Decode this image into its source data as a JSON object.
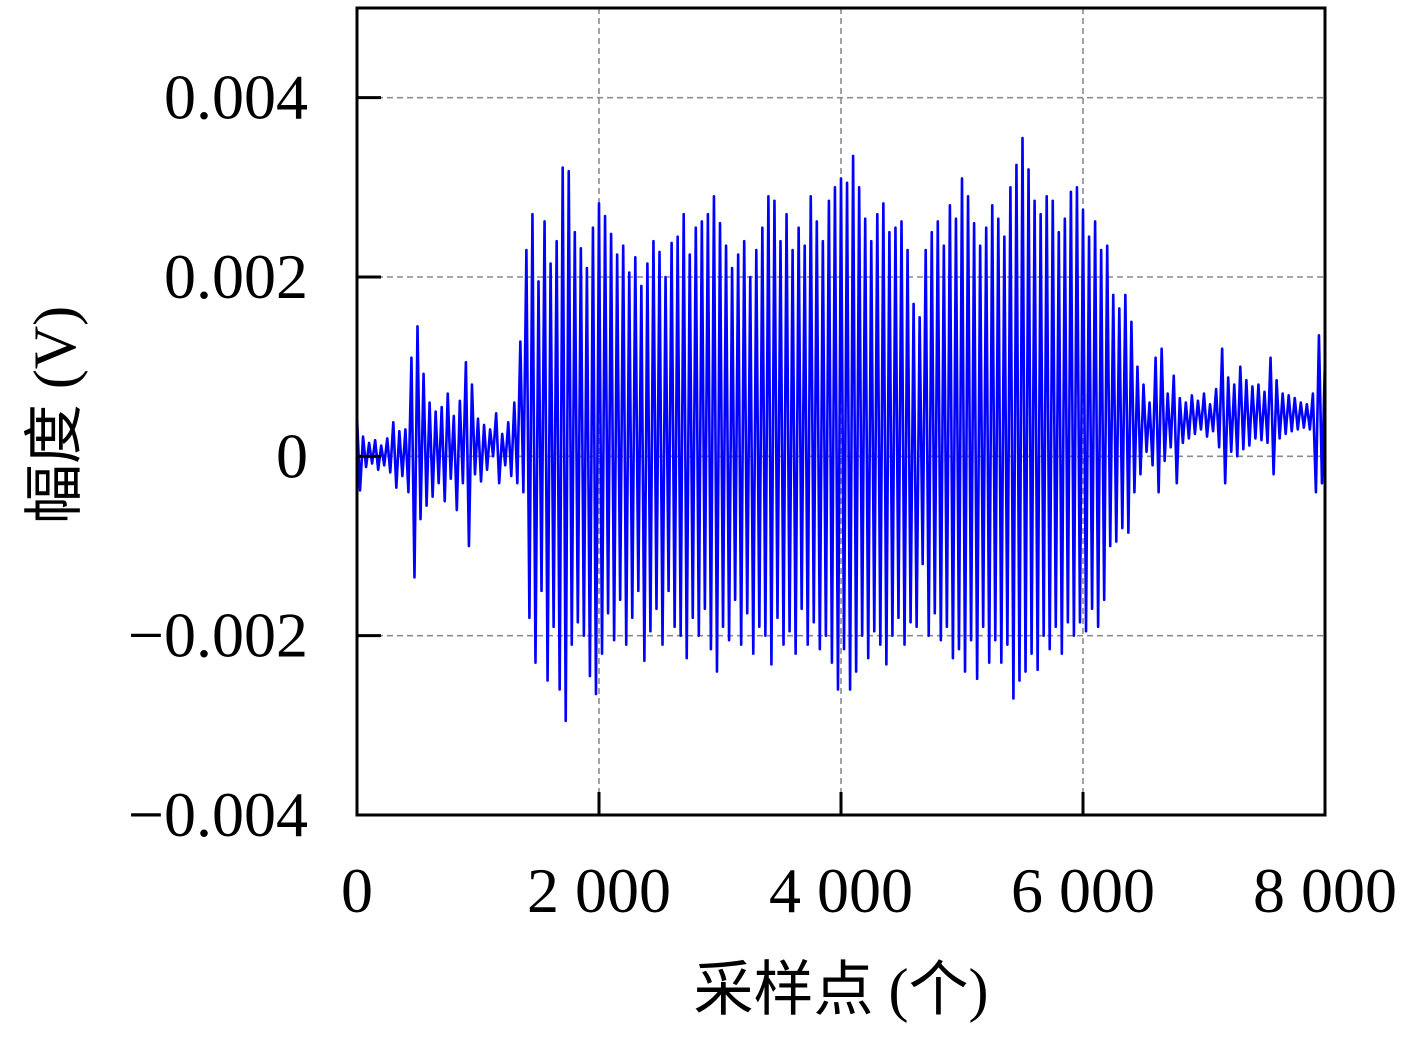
{
  "chart_data": {
    "type": "line",
    "xlabel": "采样点 (个)",
    "ylabel": "幅度 (V)",
    "xlim": [
      0,
      8000
    ],
    "ylim": [
      -0.004,
      0.005
    ],
    "xticks": [
      0,
      2000,
      4000,
      6000,
      8000
    ],
    "xtick_labels": [
      "0",
      "2 000",
      "4 000",
      "6 000",
      "8 000"
    ],
    "yticks": [
      -0.004,
      -0.002,
      0,
      0.002,
      0.004
    ],
    "ytick_labels": [
      "−0.004",
      "−0.002",
      "0",
      "0.002",
      "0.004"
    ],
    "grid": true,
    "grid_style": "dashed",
    "legend": "none",
    "series": [
      {
        "color": "#0000ff",
        "x": [
          0,
          25,
          50,
          75,
          100,
          125,
          150,
          175,
          200,
          225,
          250,
          275,
          300,
          325,
          350,
          375,
          400,
          425,
          450,
          475,
          500,
          525,
          550,
          575,
          600,
          625,
          650,
          675,
          700,
          725,
          750,
          775,
          800,
          825,
          850,
          875,
          900,
          925,
          950,
          975,
          1000,
          1025,
          1050,
          1075,
          1100,
          1125,
          1150,
          1175,
          1200,
          1225,
          1250,
          1275,
          1300,
          1325,
          1350,
          1375,
          1400,
          1425,
          1450,
          1475,
          1500,
          1525,
          1550,
          1575,
          1600,
          1625,
          1650,
          1675,
          1700,
          1725,
          1750,
          1775,
          1800,
          1825,
          1850,
          1875,
          1900,
          1925,
          1950,
          1975,
          2000,
          2025,
          2050,
          2075,
          2100,
          2125,
          2150,
          2175,
          2200,
          2225,
          2250,
          2275,
          2300,
          2325,
          2350,
          2375,
          2400,
          2425,
          2450,
          2475,
          2500,
          2525,
          2550,
          2575,
          2600,
          2625,
          2650,
          2675,
          2700,
          2725,
          2750,
          2775,
          2800,
          2825,
          2850,
          2875,
          2900,
          2925,
          2950,
          2975,
          3000,
          3025,
          3050,
          3075,
          3100,
          3125,
          3150,
          3175,
          3200,
          3225,
          3250,
          3275,
          3300,
          3325,
          3350,
          3375,
          3400,
          3425,
          3450,
          3475,
          3500,
          3525,
          3550,
          3575,
          3600,
          3625,
          3650,
          3675,
          3700,
          3725,
          3750,
          3775,
          3800,
          3825,
          3850,
          3875,
          3900,
          3925,
          3950,
          3975,
          4000,
          4025,
          4050,
          4075,
          4100,
          4125,
          4150,
          4175,
          4200,
          4225,
          4250,
          4275,
          4300,
          4325,
          4350,
          4375,
          4400,
          4425,
          4450,
          4475,
          4500,
          4525,
          4550,
          4575,
          4600,
          4625,
          4650,
          4675,
          4700,
          4725,
          4750,
          4775,
          4800,
          4825,
          4850,
          4875,
          4900,
          4925,
          4950,
          4975,
          5000,
          5025,
          5050,
          5075,
          5100,
          5125,
          5150,
          5175,
          5200,
          5225,
          5250,
          5275,
          5300,
          5325,
          5350,
          5375,
          5400,
          5425,
          5450,
          5475,
          5500,
          5525,
          5550,
          5575,
          5600,
          5625,
          5650,
          5675,
          5700,
          5725,
          5750,
          5775,
          5800,
          5825,
          5850,
          5875,
          5900,
          5925,
          5950,
          5975,
          6000,
          6025,
          6050,
          6075,
          6100,
          6125,
          6150,
          6175,
          6200,
          6225,
          6250,
          6275,
          6300,
          6325,
          6350,
          6375,
          6400,
          6425,
          6450,
          6475,
          6500,
          6525,
          6550,
          6575,
          6600,
          6625,
          6650,
          6675,
          6700,
          6725,
          6750,
          6775,
          6800,
          6825,
          6850,
          6875,
          6900,
          6925,
          6950,
          6975,
          7000,
          7025,
          7050,
          7075,
          7100,
          7125,
          7150,
          7175,
          7200,
          7225,
          7250,
          7275,
          7300,
          7325,
          7350,
          7375,
          7400,
          7425,
          7450,
          7475,
          7500,
          7525,
          7550,
          7575,
          7600,
          7625,
          7650,
          7675,
          7700,
          7725,
          7750,
          7775,
          7800,
          7825,
          7850,
          7875,
          7900,
          7925,
          7950,
          7975,
          8000
        ],
        "y": [
          0.00045,
          -0.00038,
          0.00022,
          -0.00012,
          0.00015,
          -8e-05,
          0.00018,
          -0.00015,
          0.00012,
          -0.0001,
          0.0002,
          -0.00018,
          0.00038,
          -0.00035,
          0.00028,
          -0.00022,
          0.0003,
          -0.0004,
          0.0011,
          -0.00135,
          0.00145,
          -0.0007,
          0.00092,
          -0.00055,
          0.0006,
          -0.00045,
          0.0005,
          -0.0003,
          0.00055,
          -0.0005,
          0.0007,
          -0.00025,
          0.00045,
          -0.0006,
          0.00062,
          -0.0003,
          0.00105,
          -0.001,
          0.0008,
          -0.0002,
          0.00042,
          -0.00028,
          0.00035,
          -0.00015,
          0.0003,
          0,
          0.00048,
          -0.0003,
          0.00025,
          -0.0001,
          0.00038,
          -0.00022,
          0.0006,
          -0.0003,
          0.00128,
          -0.0004,
          0.0023,
          -0.0018,
          0.0027,
          -0.0023,
          0.00195,
          -0.0015,
          0.00262,
          -0.0025,
          0.00215,
          -0.0019,
          0.0024,
          -0.0026,
          0.00322,
          -0.00295,
          0.00318,
          -0.0021,
          0.0025,
          -0.00185,
          0.00232,
          -0.002,
          0.0021,
          -0.00245,
          0.00255,
          -0.00265,
          0.00282,
          -0.0022,
          0.00268,
          -0.00175,
          0.00248,
          -0.00205,
          0.00225,
          -0.0016,
          0.00235,
          -0.0021,
          0.00205,
          -0.0018,
          0.00222,
          -0.0015,
          0.0019,
          -0.00228,
          0.00215,
          -0.00195,
          0.0024,
          -0.0017,
          0.00228,
          -0.0021,
          0.002,
          -0.0015,
          0.00238,
          -0.0019,
          0.00245,
          -0.002,
          0.0027,
          -0.00225,
          0.00225,
          -0.0018,
          0.00255,
          -0.002,
          0.00262,
          -0.0017,
          0.0027,
          -0.00215,
          0.0029,
          -0.0024,
          0.0026,
          -0.0019,
          0.00235,
          -0.00205,
          0.0021,
          -0.0016,
          0.00225,
          -0.0021,
          0.0024,
          -0.00175,
          0.002,
          -0.0022,
          0.0023,
          -0.0019,
          0.00255,
          -0.002,
          0.0029,
          -0.00232,
          0.00285,
          -0.0018,
          0.0024,
          -0.0021,
          0.0027,
          -0.00195,
          0.0023,
          -0.0022,
          0.00255,
          -0.0017,
          0.00235,
          -0.0021,
          0.0029,
          -0.00185,
          0.00262,
          -0.00215,
          0.0024,
          -0.002,
          0.00285,
          -0.0023,
          0.003,
          -0.0026,
          0.0031,
          -0.00215,
          0.00305,
          -0.0026,
          0.00335,
          -0.0024,
          0.003,
          -0.002,
          0.00265,
          -0.00225,
          0.0024,
          -0.00195,
          0.0027,
          -0.0021,
          0.00282,
          -0.00232,
          0.0025,
          -0.002,
          0.00255,
          -0.0018,
          0.00262,
          -0.0021,
          0.0023,
          -0.00185,
          0.0017,
          -0.0019,
          0.00155,
          -0.0012,
          0.0023,
          -0.002,
          0.0025,
          -0.00175,
          0.00262,
          -0.00205,
          0.00235,
          -0.0019,
          0.0028,
          -0.00225,
          0.00265,
          -0.00215,
          0.0031,
          -0.0024,
          0.0029,
          -0.00205,
          0.0026,
          -0.00248,
          0.00235,
          -0.0019,
          0.00255,
          -0.0023,
          0.0028,
          -0.00205,
          0.00265,
          -0.0023,
          0.00245,
          -0.0021,
          0.003,
          -0.0027,
          0.00325,
          -0.0025,
          0.00355,
          -0.0024,
          0.0032,
          -0.0022,
          0.00285,
          -0.00238,
          0.0027,
          -0.002,
          0.0029,
          -0.00215,
          0.00285,
          -0.0019,
          0.0025,
          -0.0022,
          0.00265,
          -0.00185,
          0.00295,
          -0.002,
          0.003,
          -0.00185,
          0.00275,
          -0.00195,
          0.00245,
          -0.0017,
          0.00262,
          -0.0019,
          0.0023,
          -0.0016,
          0.00235,
          -0.001,
          0.0018,
          -0.00095,
          0.00165,
          -0.0008,
          0.0018,
          -0.00085,
          0.0015,
          -0.0004,
          0.001,
          -0.0002,
          0.0008,
          5e-05,
          0.0006,
          -0.0001,
          0.0011,
          -0.0004,
          0.0012,
          -5e-05,
          0.0007,
          0.0001,
          0.0009,
          -0.0003,
          0.00065,
          0.00015,
          0.0006,
          0.0002,
          0.00068,
          0.00025,
          0.00062,
          0.0003,
          0.0007,
          0.00022,
          0.00058,
          0.00028,
          0.00075,
          0.0001,
          0.0012,
          -0.0003,
          0.00088,
          5e-05,
          0.0008,
          0,
          0.001,
          8e-05,
          0.00085,
          0.00012,
          0.00078,
          0.0002,
          0.0008,
          0.00018,
          0.00072,
          0.00015,
          0.0011,
          -0.0002,
          0.00085,
          0.0002,
          0.0007,
          0.00025,
          0.00068,
          0.00028,
          0.00065,
          0.0003,
          0.0006,
          0.00032,
          0.00058,
          0.0003,
          0.0007,
          -0.0004,
          0.00135,
          -0.0003,
          0.0011
        ]
      }
    ]
  },
  "colors": {
    "series": "#0000ff",
    "grid": "#8c8c8c",
    "axes": "#000000",
    "background": "#ffffff"
  }
}
